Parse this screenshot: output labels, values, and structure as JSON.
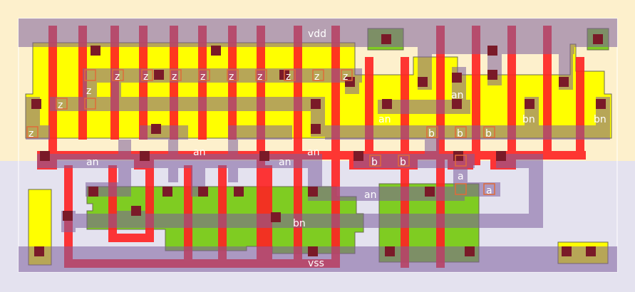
{
  "nets": {
    "vdd": "vdd",
    "vss": "vss",
    "z": "z",
    "an": "an",
    "bn": "bn",
    "a": "a",
    "b": "b"
  },
  "colors": {
    "nwell": "#fdf0cc",
    "pwell": "#e4e2ef",
    "pdiff": "#ffff00",
    "ndiff": "#7fcc22",
    "poly": "#ff2222",
    "metal1": "#9b83b4",
    "contact": "#7a1a28",
    "pin": "#e06a38"
  }
}
